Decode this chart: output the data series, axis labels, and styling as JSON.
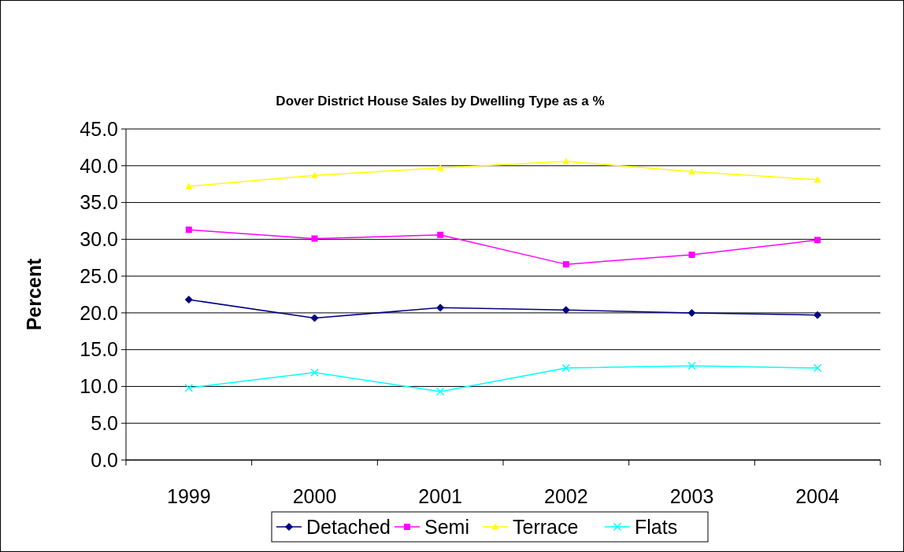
{
  "chart_data": {
    "type": "line",
    "title": "Dover District House Sales by Dwelling Type as a %",
    "ylabel": "Percent",
    "categories": [
      "1999",
      "2000",
      "2001",
      "2002",
      "2003",
      "2004"
    ],
    "series": [
      {
        "name": "Detached",
        "color": "#000080",
        "marker": "diamond",
        "values": [
          21.8,
          19.3,
          20.7,
          20.4,
          20.0,
          19.7
        ]
      },
      {
        "name": "Semi",
        "color": "#ff00ff",
        "marker": "square",
        "values": [
          31.3,
          30.1,
          30.6,
          26.6,
          27.9,
          29.9
        ]
      },
      {
        "name": "Terrace",
        "color": "#ffff00",
        "marker": "triangle",
        "values": [
          37.2,
          38.7,
          39.7,
          40.6,
          39.2,
          38.1
        ]
      },
      {
        "name": "Flats",
        "color": "#00ffff",
        "marker": "cross",
        "values": [
          9.8,
          11.9,
          9.3,
          12.5,
          12.8,
          12.5
        ]
      }
    ],
    "ylim": [
      0,
      45
    ],
    "yticks": [
      {
        "value": 0,
        "label": "0.0"
      },
      {
        "value": 5,
        "label": "5.0"
      },
      {
        "value": 10,
        "label": "10.0"
      },
      {
        "value": 15,
        "label": "15.0"
      },
      {
        "value": 20,
        "label": "20.0"
      },
      {
        "value": 25,
        "label": "25.0"
      },
      {
        "value": 30,
        "label": "30.0"
      },
      {
        "value": 35,
        "label": "35.0"
      },
      {
        "value": 40,
        "label": "40.0"
      },
      {
        "value": 45,
        "label": "45.0"
      }
    ],
    "grid": "y",
    "legend": "bottom"
  }
}
